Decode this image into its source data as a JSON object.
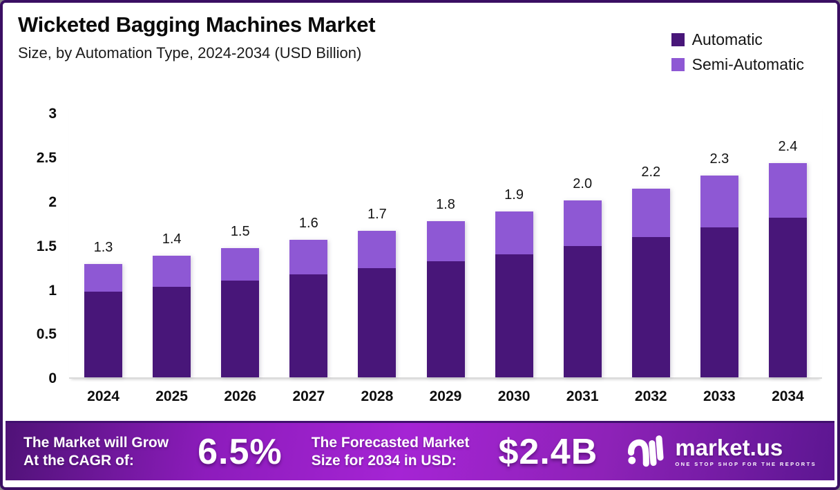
{
  "header": {
    "title": "Wicketed Bagging Machines Market",
    "subtitle": "Size, by Automation Type, 2024-2034 (USD Billion)"
  },
  "legend": {
    "items": [
      {
        "label": "Automatic",
        "color": "#481679"
      },
      {
        "label": "Semi-Automatic",
        "color": "#8e58d4"
      }
    ]
  },
  "chart_data": {
    "type": "bar",
    "stacked": true,
    "title": "Wicketed Bagging Machines Market Size, by Automation Type, 2024-2034 (USD Billion)",
    "unit": "USD Billion",
    "categories": [
      "2024",
      "2025",
      "2026",
      "2027",
      "2028",
      "2029",
      "2030",
      "2031",
      "2032",
      "2033",
      "2034"
    ],
    "series": [
      {
        "name": "Automatic",
        "color": "#481679",
        "values": [
          0.97,
          1.03,
          1.1,
          1.17,
          1.24,
          1.32,
          1.4,
          1.49,
          1.59,
          1.7,
          1.81
        ]
      },
      {
        "name": "Semi-Automatic",
        "color": "#8e58d4",
        "values": [
          0.32,
          0.35,
          0.37,
          0.39,
          0.42,
          0.45,
          0.48,
          0.52,
          0.55,
          0.59,
          0.62
        ]
      }
    ],
    "total_labels": [
      "1.3",
      "1.4",
      "1.5",
      "1.6",
      "1.7",
      "1.8",
      "1.9",
      "2.0",
      "2.2",
      "2.3",
      "2.4"
    ],
    "yticks": [
      "0",
      "0.5",
      "1",
      "1.5",
      "2",
      "2.5",
      "3"
    ],
    "ylim": [
      0,
      3
    ],
    "grid": false,
    "legend_position": "top-right"
  },
  "footer": {
    "cagr_label": "The Market will Grow\nAt the CAGR of:",
    "cagr_value": "6.5%",
    "forecast_label": "The Forecasted Market\nSize for 2034 in USD:",
    "forecast_value": "$2.4B",
    "brand": {
      "name": "market.us",
      "tagline": "ONE STOP SHOP FOR THE REPORTS"
    }
  }
}
